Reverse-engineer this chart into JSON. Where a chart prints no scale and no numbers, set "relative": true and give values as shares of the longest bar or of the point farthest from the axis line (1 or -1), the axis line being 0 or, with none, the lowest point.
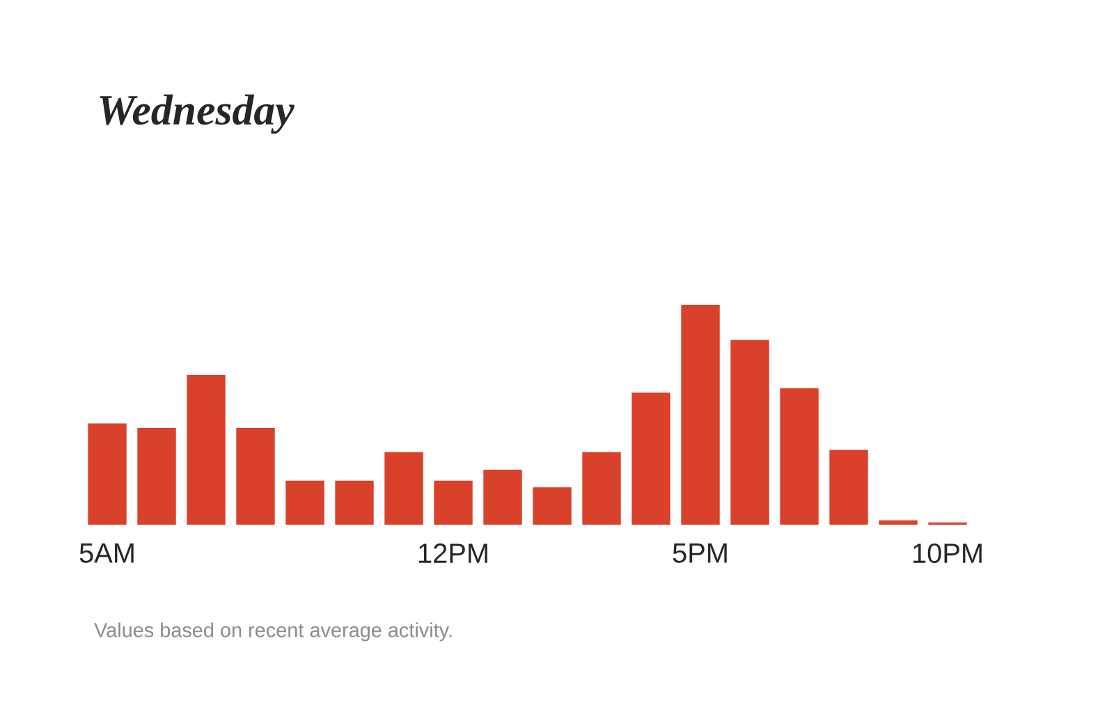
{
  "chart_data": {
    "type": "bar",
    "title": "Wednesday",
    "relative": true,
    "color": "#d9412b",
    "categories": [
      "5AM",
      null,
      null,
      null,
      null,
      null,
      null,
      "12PM",
      null,
      null,
      null,
      null,
      "5PM",
      null,
      null,
      null,
      null,
      "10PM"
    ],
    "values": [
      0.46,
      0.44,
      0.68,
      0.44,
      0.2,
      0.2,
      0.33,
      0.2,
      0.25,
      0.17,
      0.33,
      0.6,
      1,
      0.84,
      0.62,
      0.34,
      0.02,
      0.01
    ],
    "annotations": [
      "Values based on recent average activity."
    ]
  }
}
